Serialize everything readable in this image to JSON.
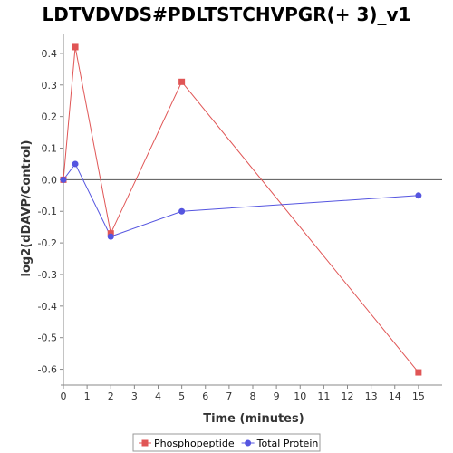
{
  "chart_data": {
    "type": "line",
    "title": "LDTVDVDS#PDLTSTCHVPGR(+ 3)_v1",
    "xlabel": "Time (minutes)",
    "ylabel": "log2(dDAVP/Control)",
    "xlim": [
      0,
      16
    ],
    "ylim": [
      -0.65,
      0.46
    ],
    "xticks": [
      0,
      1,
      2,
      3,
      4,
      5,
      6,
      7,
      8,
      9,
      10,
      11,
      12,
      13,
      14,
      15
    ],
    "yticks": [
      0.4,
      0.3,
      0.2,
      0.1,
      0.0,
      -0.1,
      -0.2,
      -0.3,
      -0.4,
      -0.5,
      -0.6
    ],
    "ytick_labels": [
      "0.4",
      "0.3",
      "0.2",
      "0.1",
      "0.0",
      "-0.1",
      "-0.2",
      "-0.3",
      "-0.4",
      "-0.5",
      "-0.6"
    ],
    "zero_line": true,
    "grid": false,
    "legend_position": "bottom",
    "series": [
      {
        "name": "Phosphopeptide",
        "color": "#e05555",
        "marker": "square",
        "x": [
          0,
          0.5,
          2,
          5,
          15
        ],
        "values": [
          0.0,
          0.42,
          -0.17,
          0.31,
          -0.61
        ]
      },
      {
        "name": "Total Protein",
        "color": "#5555e0",
        "marker": "circle",
        "x": [
          0,
          0.5,
          2,
          5,
          15
        ],
        "values": [
          0.0,
          0.05,
          -0.18,
          -0.1,
          -0.05
        ]
      }
    ]
  }
}
